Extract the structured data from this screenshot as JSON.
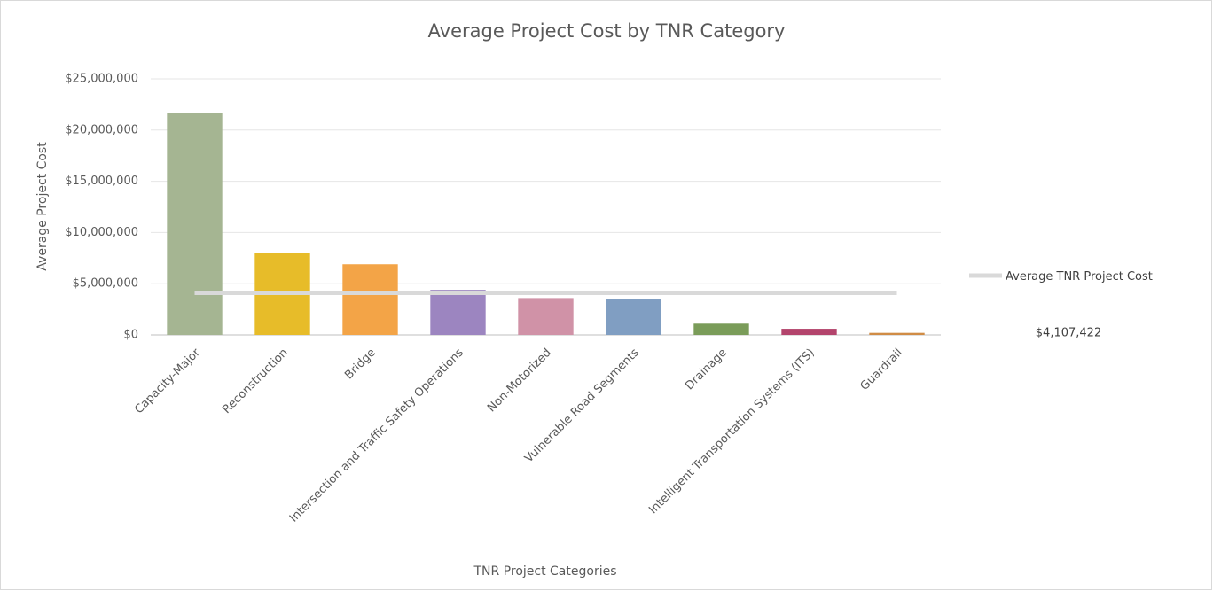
{
  "chart_data": {
    "type": "bar",
    "title": "Average Project Cost by TNR Category",
    "x_label": "TNR Project Categories",
    "y_label": "Average Project Cost",
    "categories": [
      "Capacity-Major",
      "Reconstruction",
      "Bridge",
      "Intersection and Traffic Safety Operations",
      "Non-Motorized",
      "Vulnerable Road Segments",
      "Drainage",
      "Intelligent Transportation Systems (ITS)",
      "Guardrail"
    ],
    "values": [
      21700000,
      8000000,
      6900000,
      4400000,
      3600000,
      3500000,
      1100000,
      600000,
      200000
    ],
    "colors": [
      "#a5b592",
      "#e7bc29",
      "#f3a447",
      "#9c85c0",
      "#d092a7",
      "#809ec2",
      "#7a9c59",
      "#b3446c",
      "#d08c45"
    ],
    "ylim": [
      0,
      25000000
    ],
    "yticks": [
      {
        "value": 0,
        "label": "$0"
      },
      {
        "value": 5000000,
        "label": "$5,000,000"
      },
      {
        "value": 10000000,
        "label": "$10,000,000"
      },
      {
        "value": 15000000,
        "label": "$15,000,000"
      },
      {
        "value": 20000000,
        "label": "$20,000,000"
      },
      {
        "value": 25000000,
        "label": "$25,000,000"
      }
    ],
    "grid": true,
    "reference_line": {
      "name": "Average TNR Project Cost",
      "value": 4107422,
      "value_label": "$4,107,422",
      "color": "#d9d9d9"
    }
  }
}
